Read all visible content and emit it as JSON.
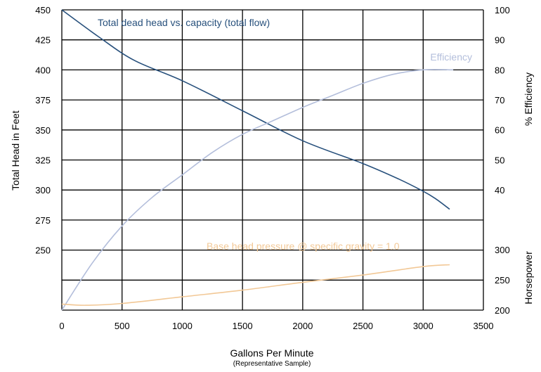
{
  "chart_data": {
    "type": "line",
    "x_axis": {
      "label": "Gallons Per Minute",
      "sublabel": "(Representative Sample)",
      "range": [
        0,
        3500
      ],
      "ticks": [
        0,
        500,
        1000,
        1500,
        2000,
        2500,
        3000,
        3500
      ]
    },
    "left_axis": {
      "label": "Total Head in Feet",
      "range": [
        200,
        450
      ],
      "tick_labels": [
        250,
        275,
        300,
        325,
        350,
        375,
        400,
        425,
        450
      ]
    },
    "right_axis_efficiency": {
      "label": "% Efficiency",
      "tick_labels": [
        40,
        50,
        60,
        70,
        80,
        90,
        100
      ]
    },
    "right_axis_horsepower": {
      "label": "Horsepower",
      "tick_labels": [
        200,
        250,
        300
      ]
    },
    "grid": true,
    "series": [
      {
        "name": "Total dead head vs. capacity (total flow)",
        "axis": "head",
        "color": "#27507c",
        "x": [
          0,
          300,
          600,
          1000,
          1500,
          2000,
          2500,
          2800,
          3000,
          3100,
          3220
        ],
        "y": [
          450,
          428,
          408,
          391,
          366,
          341,
          322,
          309,
          299,
          293,
          284
        ]
      },
      {
        "name": "Efficiency",
        "axis": "efficiency",
        "color": "#b3bedb",
        "x": [
          0,
          250,
          500,
          750,
          1000,
          1250,
          1500,
          1750,
          2000,
          2250,
          2500,
          2750,
          3000,
          3250
        ],
        "y": [
          0,
          15.5,
          28,
          37.5,
          45,
          52.5,
          58.5,
          63,
          67.5,
          71.5,
          75.5,
          78.5,
          80,
          80
        ]
      },
      {
        "name": "Base head pressure @ specific gravity = 1.0",
        "axis": "horsepower",
        "color": "#f2c896",
        "x": [
          0,
          200,
          500,
          1000,
          1500,
          2000,
          2500,
          3000,
          3220
        ],
        "y": [
          210,
          208,
          211,
          222,
          233,
          246,
          258,
          272,
          275
        ]
      }
    ]
  }
}
